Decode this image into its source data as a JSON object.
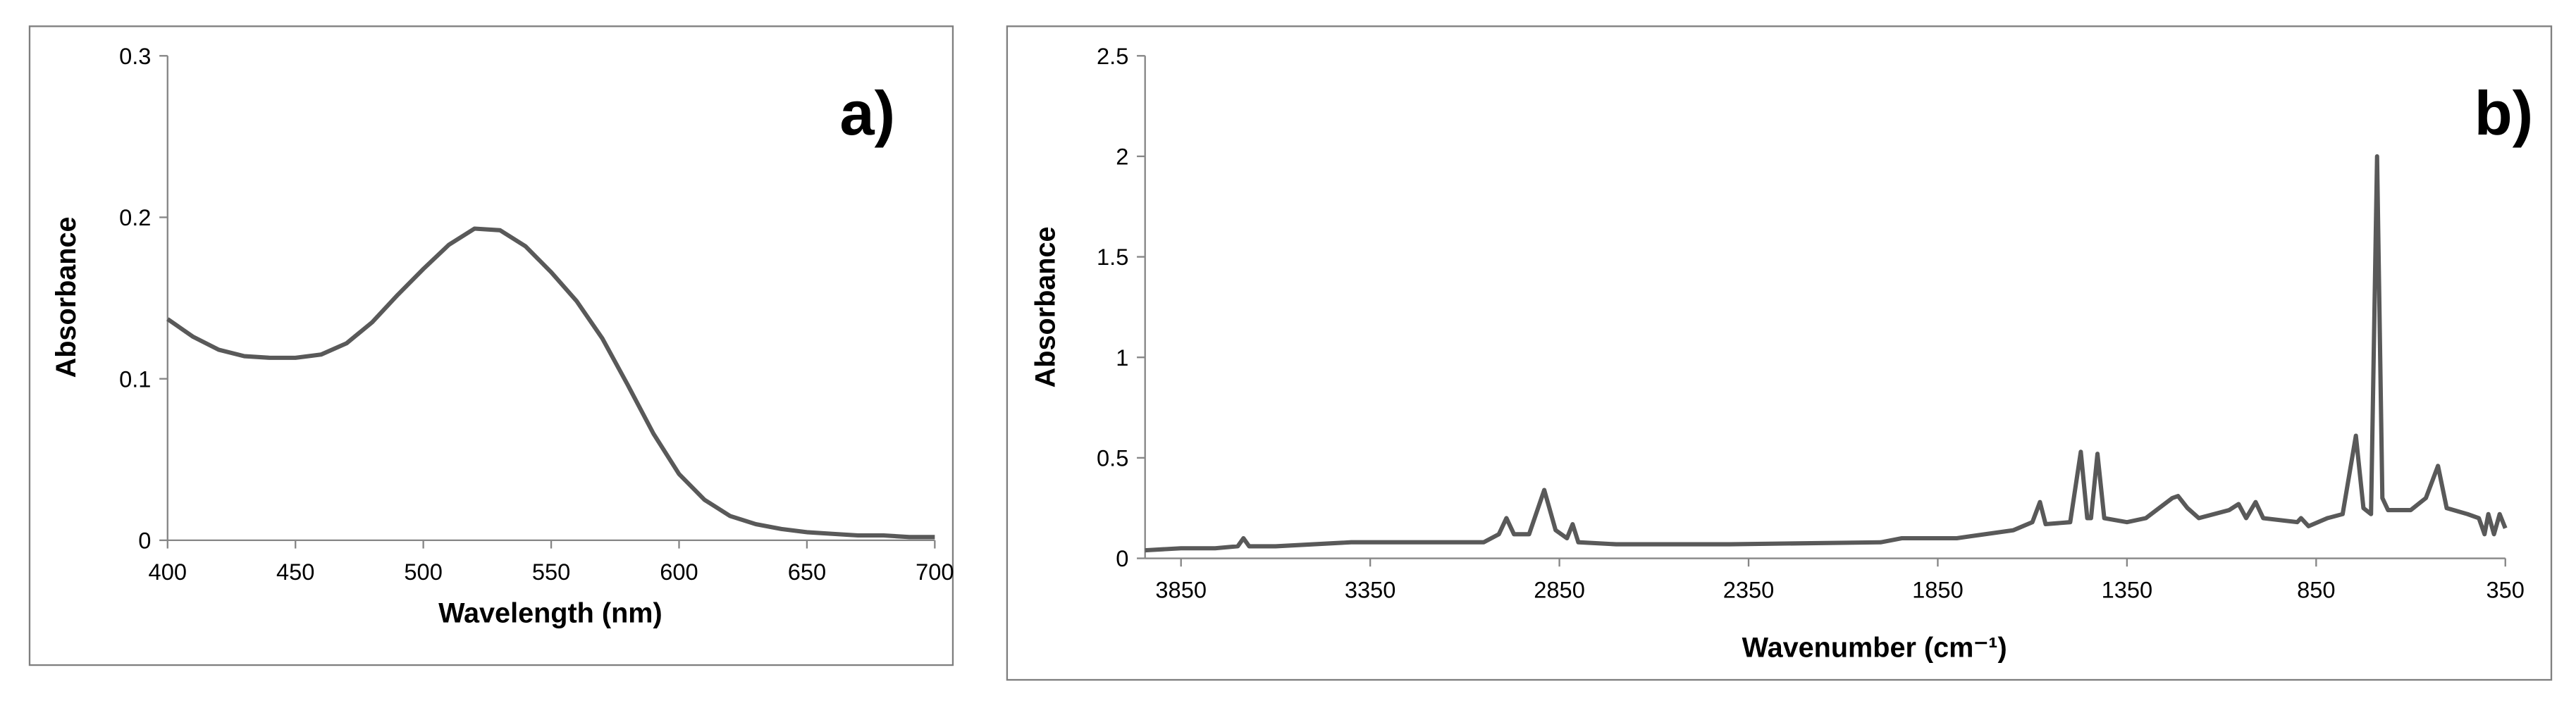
{
  "chart_data": [
    {
      "type": "line",
      "x_label": "Wavelength (nm)",
      "y_label": "Absorbance",
      "annotation": "a)",
      "xlim": [
        400,
        700
      ],
      "ylim": [
        0,
        0.3
      ],
      "xticks": [
        400,
        450,
        500,
        550,
        600,
        650,
        700
      ],
      "yticks": [
        0,
        0.1,
        0.2,
        0.3
      ],
      "grid": false,
      "x": [
        400,
        410,
        420,
        430,
        440,
        450,
        460,
        470,
        480,
        490,
        500,
        510,
        520,
        530,
        540,
        550,
        560,
        570,
        580,
        590,
        600,
        610,
        620,
        630,
        640,
        650,
        660,
        670,
        680,
        690,
        700
      ],
      "series": [
        {
          "color": "#595959",
          "values": [
            0.137,
            0.126,
            0.118,
            0.114,
            0.113,
            0.113,
            0.115,
            0.122,
            0.135,
            0.152,
            0.168,
            0.183,
            0.193,
            0.192,
            0.182,
            0.166,
            0.148,
            0.125,
            0.096,
            0.066,
            0.041,
            0.025,
            0.015,
            0.01,
            0.007,
            0.005,
            0.004,
            0.003,
            0.003,
            0.002,
            0.002
          ]
        }
      ]
    },
    {
      "type": "line",
      "x_label": "Wavenumber (cm⁻¹)",
      "y_label": "Absorbance",
      "annotation": "b)",
      "xlim": [
        3945,
        350
      ],
      "ylim": [
        0,
        2.5
      ],
      "xticks": [
        3850,
        3350,
        2850,
        2350,
        1850,
        1350,
        850,
        350
      ],
      "yticks": [
        0,
        0.5,
        1,
        1.5,
        2,
        2.5
      ],
      "grid": false,
      "x": [
        3945,
        3850,
        3760,
        3700,
        3685,
        3670,
        3600,
        3400,
        3200,
        3050,
        3010,
        2990,
        2970,
        2930,
        2890,
        2860,
        2830,
        2815,
        2800,
        2700,
        2400,
        2000,
        1945,
        1800,
        1650,
        1600,
        1580,
        1565,
        1500,
        1472,
        1455,
        1445,
        1428,
        1410,
        1350,
        1300,
        1230,
        1215,
        1190,
        1160,
        1080,
        1055,
        1035,
        1010,
        990,
        900,
        890,
        870,
        820,
        780,
        745,
        725,
        705,
        689,
        675,
        660,
        600,
        560,
        528,
        505,
        450,
        420,
        405,
        395,
        380,
        365,
        350
      ],
      "series": [
        {
          "color": "#595959",
          "values": [
            0.04,
            0.05,
            0.05,
            0.06,
            0.1,
            0.06,
            0.06,
            0.08,
            0.08,
            0.08,
            0.12,
            0.2,
            0.12,
            0.12,
            0.34,
            0.14,
            0.1,
            0.17,
            0.08,
            0.07,
            0.07,
            0.08,
            0.1,
            0.1,
            0.14,
            0.18,
            0.28,
            0.17,
            0.18,
            0.53,
            0.2,
            0.2,
            0.52,
            0.2,
            0.18,
            0.2,
            0.3,
            0.31,
            0.25,
            0.2,
            0.24,
            0.27,
            0.2,
            0.28,
            0.2,
            0.18,
            0.2,
            0.16,
            0.2,
            0.22,
            0.61,
            0.25,
            0.22,
            2.0,
            0.3,
            0.24,
            0.24,
            0.3,
            0.46,
            0.25,
            0.22,
            0.2,
            0.12,
            0.22,
            0.12,
            0.22,
            0.15
          ]
        }
      ]
    }
  ]
}
